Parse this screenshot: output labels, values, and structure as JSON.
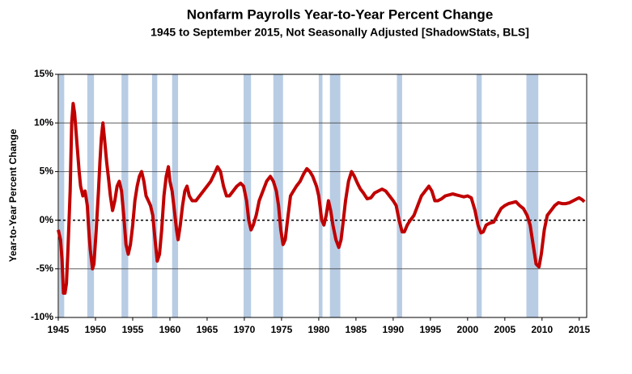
{
  "chart_data": {
    "type": "line",
    "title": "Nonfarm Payrolls Year-to-Year Percent Change",
    "subtitle": "1945 to September 2015, Not Seasonally Adjusted  [ShadowStats, BLS]",
    "y_label": "Year-to-Year Percent Change",
    "color": "#c00000",
    "recession_color": "#b8cce4",
    "grid": true,
    "xlim": [
      1945,
      2016
    ],
    "xticks": [
      1945,
      1950,
      1955,
      1960,
      1965,
      1970,
      1975,
      1980,
      1985,
      1990,
      1995,
      2000,
      2005,
      2010,
      2015
    ],
    "ylim": [
      -10,
      15
    ],
    "yticks": [
      {
        "value": -10,
        "label": "-10%"
      },
      {
        "value": -5,
        "label": "-5%"
      },
      {
        "value": 0,
        "label": "0%"
      },
      {
        "value": 5,
        "label": "5%"
      },
      {
        "value": 10,
        "label": "10%"
      },
      {
        "value": 15,
        "label": "15%"
      }
    ],
    "recessions": [
      [
        1945.1,
        1945.8
      ],
      [
        1948.9,
        1949.8
      ],
      [
        1953.5,
        1954.4
      ],
      [
        1957.6,
        1958.3
      ],
      [
        1960.3,
        1961.1
      ],
      [
        1969.9,
        1970.9
      ],
      [
        1973.9,
        1975.2
      ],
      [
        1980.0,
        1980.5
      ],
      [
        1981.5,
        1982.9
      ],
      [
        1990.5,
        1991.2
      ],
      [
        2001.2,
        2001.9
      ],
      [
        2007.9,
        2009.5
      ]
    ],
    "x": [
      1945.0,
      1945.3,
      1945.5,
      1945.7,
      1945.9,
      1946.1,
      1946.3,
      1946.6,
      1946.8,
      1947.0,
      1947.2,
      1947.5,
      1947.8,
      1948.0,
      1948.3,
      1948.6,
      1948.9,
      1949.1,
      1949.3,
      1949.6,
      1949.8,
      1950.1,
      1950.4,
      1950.6,
      1950.8,
      1951.0,
      1951.2,
      1951.5,
      1951.8,
      1952.0,
      1952.3,
      1952.6,
      1952.9,
      1953.2,
      1953.5,
      1953.8,
      1954.1,
      1954.4,
      1954.7,
      1955.0,
      1955.3,
      1955.6,
      1955.9,
      1956.2,
      1956.5,
      1956.8,
      1957.1,
      1957.4,
      1957.7,
      1958.0,
      1958.3,
      1958.6,
      1958.9,
      1959.2,
      1959.5,
      1959.8,
      1960.0,
      1960.3,
      1960.6,
      1960.9,
      1961.1,
      1961.4,
      1961.7,
      1962.0,
      1962.3,
      1962.6,
      1963.0,
      1963.5,
      1964.0,
      1964.5,
      1965.0,
      1965.5,
      1966.0,
      1966.4,
      1966.8,
      1967.2,
      1967.6,
      1968.0,
      1968.5,
      1969.0,
      1969.5,
      1969.9,
      1970.3,
      1970.6,
      1970.9,
      1971.2,
      1971.6,
      1972.0,
      1972.5,
      1973.0,
      1973.5,
      1973.9,
      1974.3,
      1974.6,
      1974.9,
      1975.2,
      1975.5,
      1975.8,
      1976.2,
      1976.6,
      1977.0,
      1977.5,
      1978.0,
      1978.4,
      1978.8,
      1979.2,
      1979.7,
      1980.0,
      1980.4,
      1980.7,
      1981.0,
      1981.3,
      1981.6,
      1981.9,
      1982.3,
      1982.7,
      1983.0,
      1983.3,
      1983.6,
      1984.0,
      1984.4,
      1984.8,
      1985.2,
      1985.6,
      1986.0,
      1986.5,
      1987.0,
      1987.5,
      1988.0,
      1988.5,
      1989.0,
      1989.5,
      1990.0,
      1990.4,
      1990.8,
      1991.2,
      1991.5,
      1991.9,
      1992.3,
      1992.8,
      1993.3,
      1993.8,
      1994.3,
      1994.8,
      1995.2,
      1995.6,
      1996.0,
      1996.5,
      1997.0,
      1997.5,
      1998.0,
      1998.5,
      1999.0,
      1999.5,
      2000.0,
      2000.5,
      2001.0,
      2001.4,
      2001.8,
      2002.1,
      2002.5,
      2003.0,
      2003.5,
      2004.0,
      2004.5,
      2005.0,
      2005.5,
      2006.0,
      2006.5,
      2007.0,
      2007.5,
      2008.0,
      2008.4,
      2008.8,
      2009.2,
      2009.6,
      2009.9,
      2010.3,
      2010.7,
      2011.2,
      2011.7,
      2012.2,
      2012.7,
      2013.2,
      2013.7,
      2014.2,
      2014.7,
      2015.0,
      2015.4,
      2015.7
    ],
    "values": [
      -1,
      -2,
      -4,
      -7.5,
      -7.5,
      -6.5,
      -3,
      3,
      10,
      12,
      11,
      8,
      5,
      3.5,
      2.5,
      3,
      1.5,
      -1,
      -3,
      -5,
      -4.5,
      -1,
      3,
      6,
      8.5,
      10,
      8.5,
      6,
      4,
      2.5,
      1,
      2,
      3.5,
      4,
      3,
      0.5,
      -2.5,
      -3.5,
      -2.5,
      -0.5,
      2,
      3.5,
      4.5,
      5,
      4,
      2.5,
      2,
      1.5,
      0.5,
      -2,
      -4.2,
      -3.5,
      -1,
      2.5,
      4.5,
      5.5,
      4,
      3,
      1,
      -1,
      -2,
      -0.5,
      1.5,
      3,
      3.5,
      2.5,
      2,
      2,
      2.5,
      3,
      3.5,
      4,
      4.8,
      5.5,
      5,
      3.5,
      2.5,
      2.5,
      3,
      3.5,
      3.8,
      3.5,
      2,
      0,
      -1,
      -0.5,
      0.5,
      2,
      3,
      4,
      4.5,
      4,
      3,
      1.5,
      -1,
      -2.5,
      -2,
      0,
      2.5,
      3,
      3.5,
      4,
      4.8,
      5.3,
      5,
      4.5,
      3.5,
      2.5,
      0,
      -0.5,
      0.5,
      2,
      1,
      -0.5,
      -2,
      -2.8,
      -2,
      0,
      2,
      4,
      5,
      4.5,
      3.8,
      3.2,
      2.8,
      2.2,
      2.3,
      2.8,
      3,
      3.2,
      3,
      2.5,
      2,
      1.5,
      0,
      -1.2,
      -1.2,
      -0.5,
      0,
      0.5,
      1.5,
      2.5,
      3,
      3.5,
      3,
      2,
      2,
      2.2,
      2.5,
      2.6,
      2.7,
      2.6,
      2.5,
      2.4,
      2.5,
      2.3,
      1,
      -0.5,
      -1.3,
      -1.2,
      -0.5,
      -0.3,
      -0.2,
      0.5,
      1.2,
      1.5,
      1.7,
      1.8,
      1.9,
      1.5,
      1.2,
      0.5,
      -0.5,
      -2.5,
      -4.5,
      -4.8,
      -3.5,
      -1,
      0.5,
      1,
      1.5,
      1.8,
      1.7,
      1.7,
      1.8,
      2,
      2.2,
      2.3,
      2.1,
      1.9
    ]
  }
}
